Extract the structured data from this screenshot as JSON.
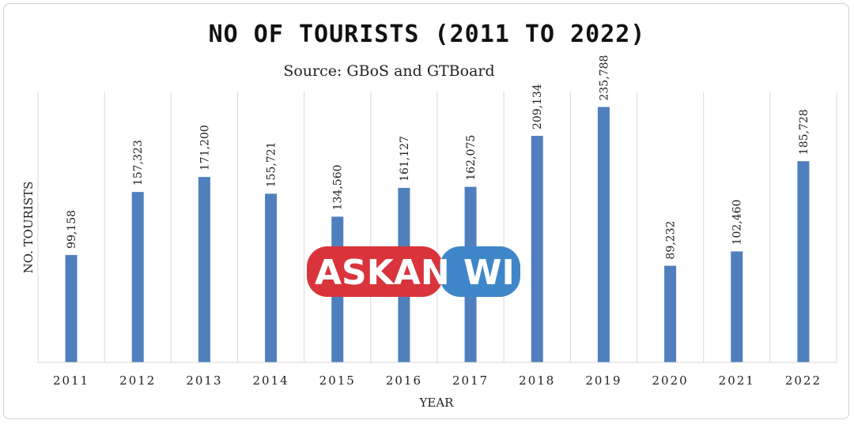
{
  "chart_data": {
    "type": "bar",
    "title": "NO OF TOURISTS (2011 TO 2022)",
    "subtitle": "Source: GBoS and GTBoard",
    "xlabel": "YEAR",
    "ylabel": "NO. TOURISTS",
    "categories": [
      "2011",
      "2012",
      "2013",
      "2014",
      "2015",
      "2016",
      "2017",
      "2018",
      "2019",
      "2020",
      "2021",
      "2022"
    ],
    "values": [
      99158,
      157323,
      171200,
      155721,
      134560,
      161127,
      162075,
      209134,
      235788,
      89232,
      102460,
      185728
    ],
    "value_labels": [
      "99,158",
      "157,323",
      "171,200",
      "155,721",
      "134,560",
      "161,127",
      "162,075",
      "209,134",
      "235,788",
      "89,232",
      "102,460",
      "185,728"
    ],
    "ylim": [
      0,
      250000
    ],
    "grid": "vertical",
    "bar_color": "#4f7fbd"
  },
  "watermark": {
    "left_text": "ASKAN",
    "right_text": "WI",
    "left_color": "#d9343b",
    "right_color": "#3f86c9"
  }
}
